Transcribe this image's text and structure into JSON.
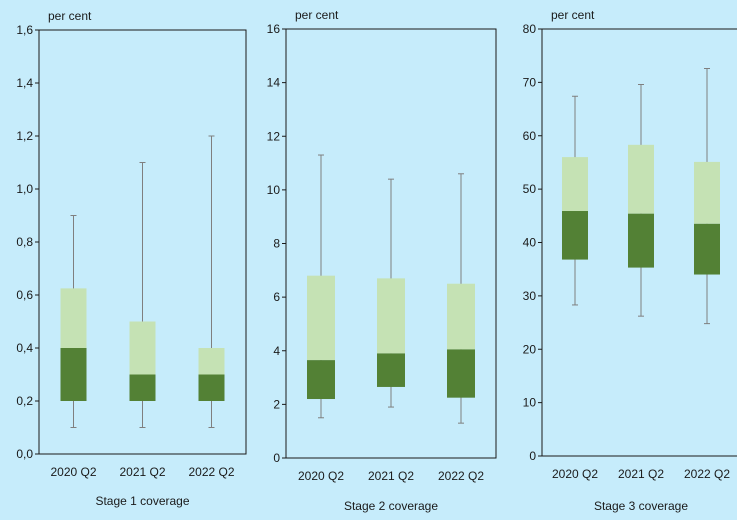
{
  "colors": {
    "background": "#c6ecfb",
    "upper_box": "#c5e2b4",
    "lower_box": "#538135",
    "whisker": "#7f7f7f",
    "axis": "#1a1a1a"
  },
  "chart_data": [
    {
      "type": "box",
      "unit_label": "per cent",
      "xlabel": "Stage 1 coverage",
      "ylim": [
        0,
        1.6
      ],
      "yticks": [
        "0,0",
        "0,2",
        "0,4",
        "0,6",
        "0,8",
        "1,0",
        "1,2",
        "1,4",
        "1,6"
      ],
      "ytick_values": [
        0,
        0.2,
        0.4,
        0.6,
        0.8,
        1.0,
        1.2,
        1.4,
        1.6
      ],
      "categories": [
        "2020 Q2",
        "2021 Q2",
        "2022 Q2"
      ],
      "boxes": [
        {
          "min": 0.1,
          "q1": 0.2,
          "median": 0.4,
          "q3": 0.625,
          "max": 0.9
        },
        {
          "min": 0.1,
          "q1": 0.2,
          "median": 0.3,
          "q3": 0.5,
          "max": 1.1
        },
        {
          "min": 0.1,
          "q1": 0.2,
          "median": 0.3,
          "q3": 0.4,
          "max": 1.2
        }
      ]
    },
    {
      "type": "box",
      "unit_label": "per cent",
      "xlabel": "Stage 2 coverage",
      "ylim": [
        0,
        16
      ],
      "yticks": [
        "0",
        "2",
        "4",
        "6",
        "8",
        "10",
        "12",
        "14",
        "16"
      ],
      "ytick_values": [
        0,
        2,
        4,
        6,
        8,
        10,
        12,
        14,
        16
      ],
      "categories": [
        "2020 Q2",
        "2021 Q2",
        "2022 Q2"
      ],
      "boxes": [
        {
          "min": 1.5,
          "q1": 2.2,
          "median": 3.65,
          "q3": 6.8,
          "max": 11.3
        },
        {
          "min": 1.9,
          "q1": 2.65,
          "median": 3.9,
          "q3": 6.7,
          "max": 10.4
        },
        {
          "min": 1.3,
          "q1": 2.25,
          "median": 4.05,
          "q3": 6.5,
          "max": 10.6
        }
      ]
    },
    {
      "type": "box",
      "unit_label": "per cent",
      "xlabel": "Stage 3 coverage",
      "ylim": [
        0,
        80
      ],
      "yticks": [
        "0",
        "10",
        "20",
        "30",
        "40",
        "50",
        "60",
        "70",
        "80"
      ],
      "ytick_values": [
        0,
        10,
        20,
        30,
        40,
        50,
        60,
        70,
        80
      ],
      "categories": [
        "2020 Q2",
        "2021 Q2",
        "2022 Q2"
      ],
      "boxes": [
        {
          "min": 28.3,
          "q1": 36.8,
          "median": 45.9,
          "q3": 56.0,
          "max": 67.4
        },
        {
          "min": 26.2,
          "q1": 35.3,
          "median": 45.4,
          "q3": 58.3,
          "max": 69.6
        },
        {
          "min": 24.8,
          "q1": 34.0,
          "median": 43.5,
          "q3": 55.1,
          "max": 72.6
        }
      ]
    }
  ]
}
